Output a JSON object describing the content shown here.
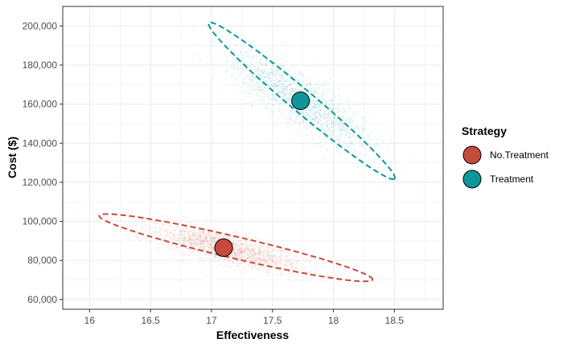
{
  "chart_data": {
    "type": "scatter",
    "xlabel": "Effectiveness",
    "ylabel": "Cost ($)",
    "xlim": [
      15.78,
      18.9
    ],
    "ylim": [
      55000,
      210000
    ],
    "x_ticks": [
      16,
      16.5,
      17,
      17.5,
      18,
      18.5
    ],
    "x_tick_labels": [
      "16",
      "16.5",
      "17",
      "17.5",
      "18",
      "18.5"
    ],
    "y_ticks": [
      60000,
      80000,
      100000,
      120000,
      140000,
      160000,
      180000,
      200000
    ],
    "y_tick_labels": [
      "60,000",
      "80,000",
      "100,000",
      "120,000",
      "140,000",
      "160,000",
      "180,000",
      "200,000"
    ],
    "grid": true,
    "legend": {
      "title": "Strategy",
      "position": "right",
      "entries": [
        {
          "label": "No.Treatment",
          "color": "#C64B3C"
        },
        {
          "label": "Treatment",
          "color": "#0F969A"
        }
      ]
    },
    "series": [
      {
        "name": "No.Treatment",
        "color": "#C64B3C",
        "mean": {
          "x": 17.1,
          "y": 86500
        },
        "cloud": {
          "mean_x": 17.1,
          "mean_y": 86500,
          "sd_x": 0.32,
          "sd_y": 6200,
          "corr": -0.78,
          "n": 2000
        },
        "ellipse": {
          "center_x": 17.2,
          "center_y": 86500,
          "semi_axis_major_x": 1.12,
          "semi_axis_major_y": 16500,
          "semi_axis_minor_x": 0.05,
          "semi_axis_minor_y": 5000
        }
      },
      {
        "name": "Treatment",
        "color": "#0F969A",
        "mean": {
          "x": 17.73,
          "y": 161700
        },
        "cloud": {
          "mean_x": 17.73,
          "mean_y": 161700,
          "sd_x": 0.3,
          "sd_y": 13000,
          "corr": -0.83,
          "n": 2000
        },
        "ellipse": {
          "center_x": 17.74,
          "center_y": 161700,
          "semi_axis_major_x": 0.76,
          "semi_axis_major_y": 40000,
          "semi_axis_minor_x": 0.08,
          "semi_axis_minor_y": 3400
        }
      }
    ]
  }
}
